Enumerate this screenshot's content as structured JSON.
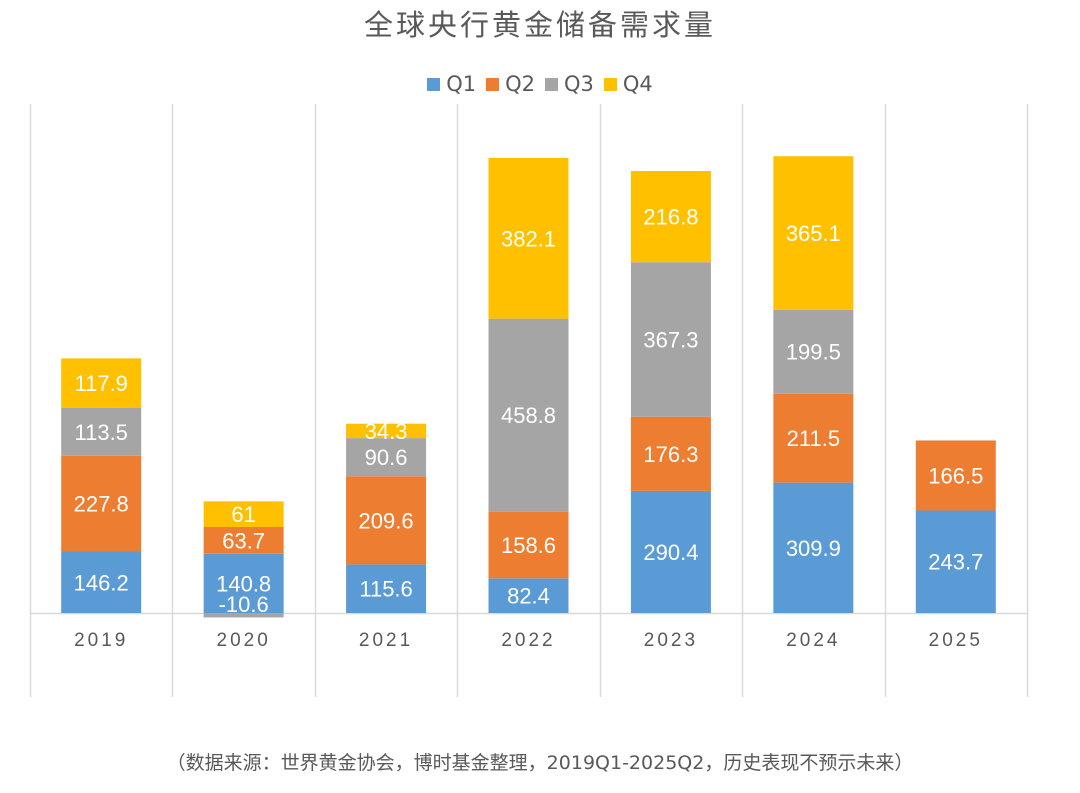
{
  "chart_data": {
    "type": "bar",
    "stacked": true,
    "title": "全球央行黄金储备需求量",
    "xlabel": "",
    "ylabel": "",
    "categories": [
      "2019",
      "2020",
      "2021",
      "2022",
      "2023",
      "2024",
      "2025"
    ],
    "series": [
      {
        "name": "Q1",
        "color": "#5B9BD5",
        "values": [
          146.2,
          140.8,
          115.6,
          82.4,
          290.4,
          309.9,
          243.7
        ]
      },
      {
        "name": "Q2",
        "color": "#ED7D31",
        "values": [
          227.8,
          63.7,
          209.6,
          158.6,
          176.3,
          211.5,
          166.5
        ]
      },
      {
        "name": "Q3",
        "color": "#A5A5A5",
        "values": [
          113.5,
          -10.6,
          90.6,
          458.8,
          367.3,
          199.5,
          null
        ]
      },
      {
        "name": "Q4",
        "color": "#FFC000",
        "values": [
          117.9,
          61,
          34.3,
          382.1,
          216.8,
          365.1,
          null
        ]
      }
    ],
    "ylim": [
      -20,
      1100
    ],
    "y_axis_visible": false,
    "grid": "vertical category separators",
    "legend_position": "top-center",
    "data_labels": true
  },
  "footer": {
    "source": "（数据来源：世界黄金协会，博时基金整理，2019Q1-2025Q2，历史表现不预示未来）"
  }
}
